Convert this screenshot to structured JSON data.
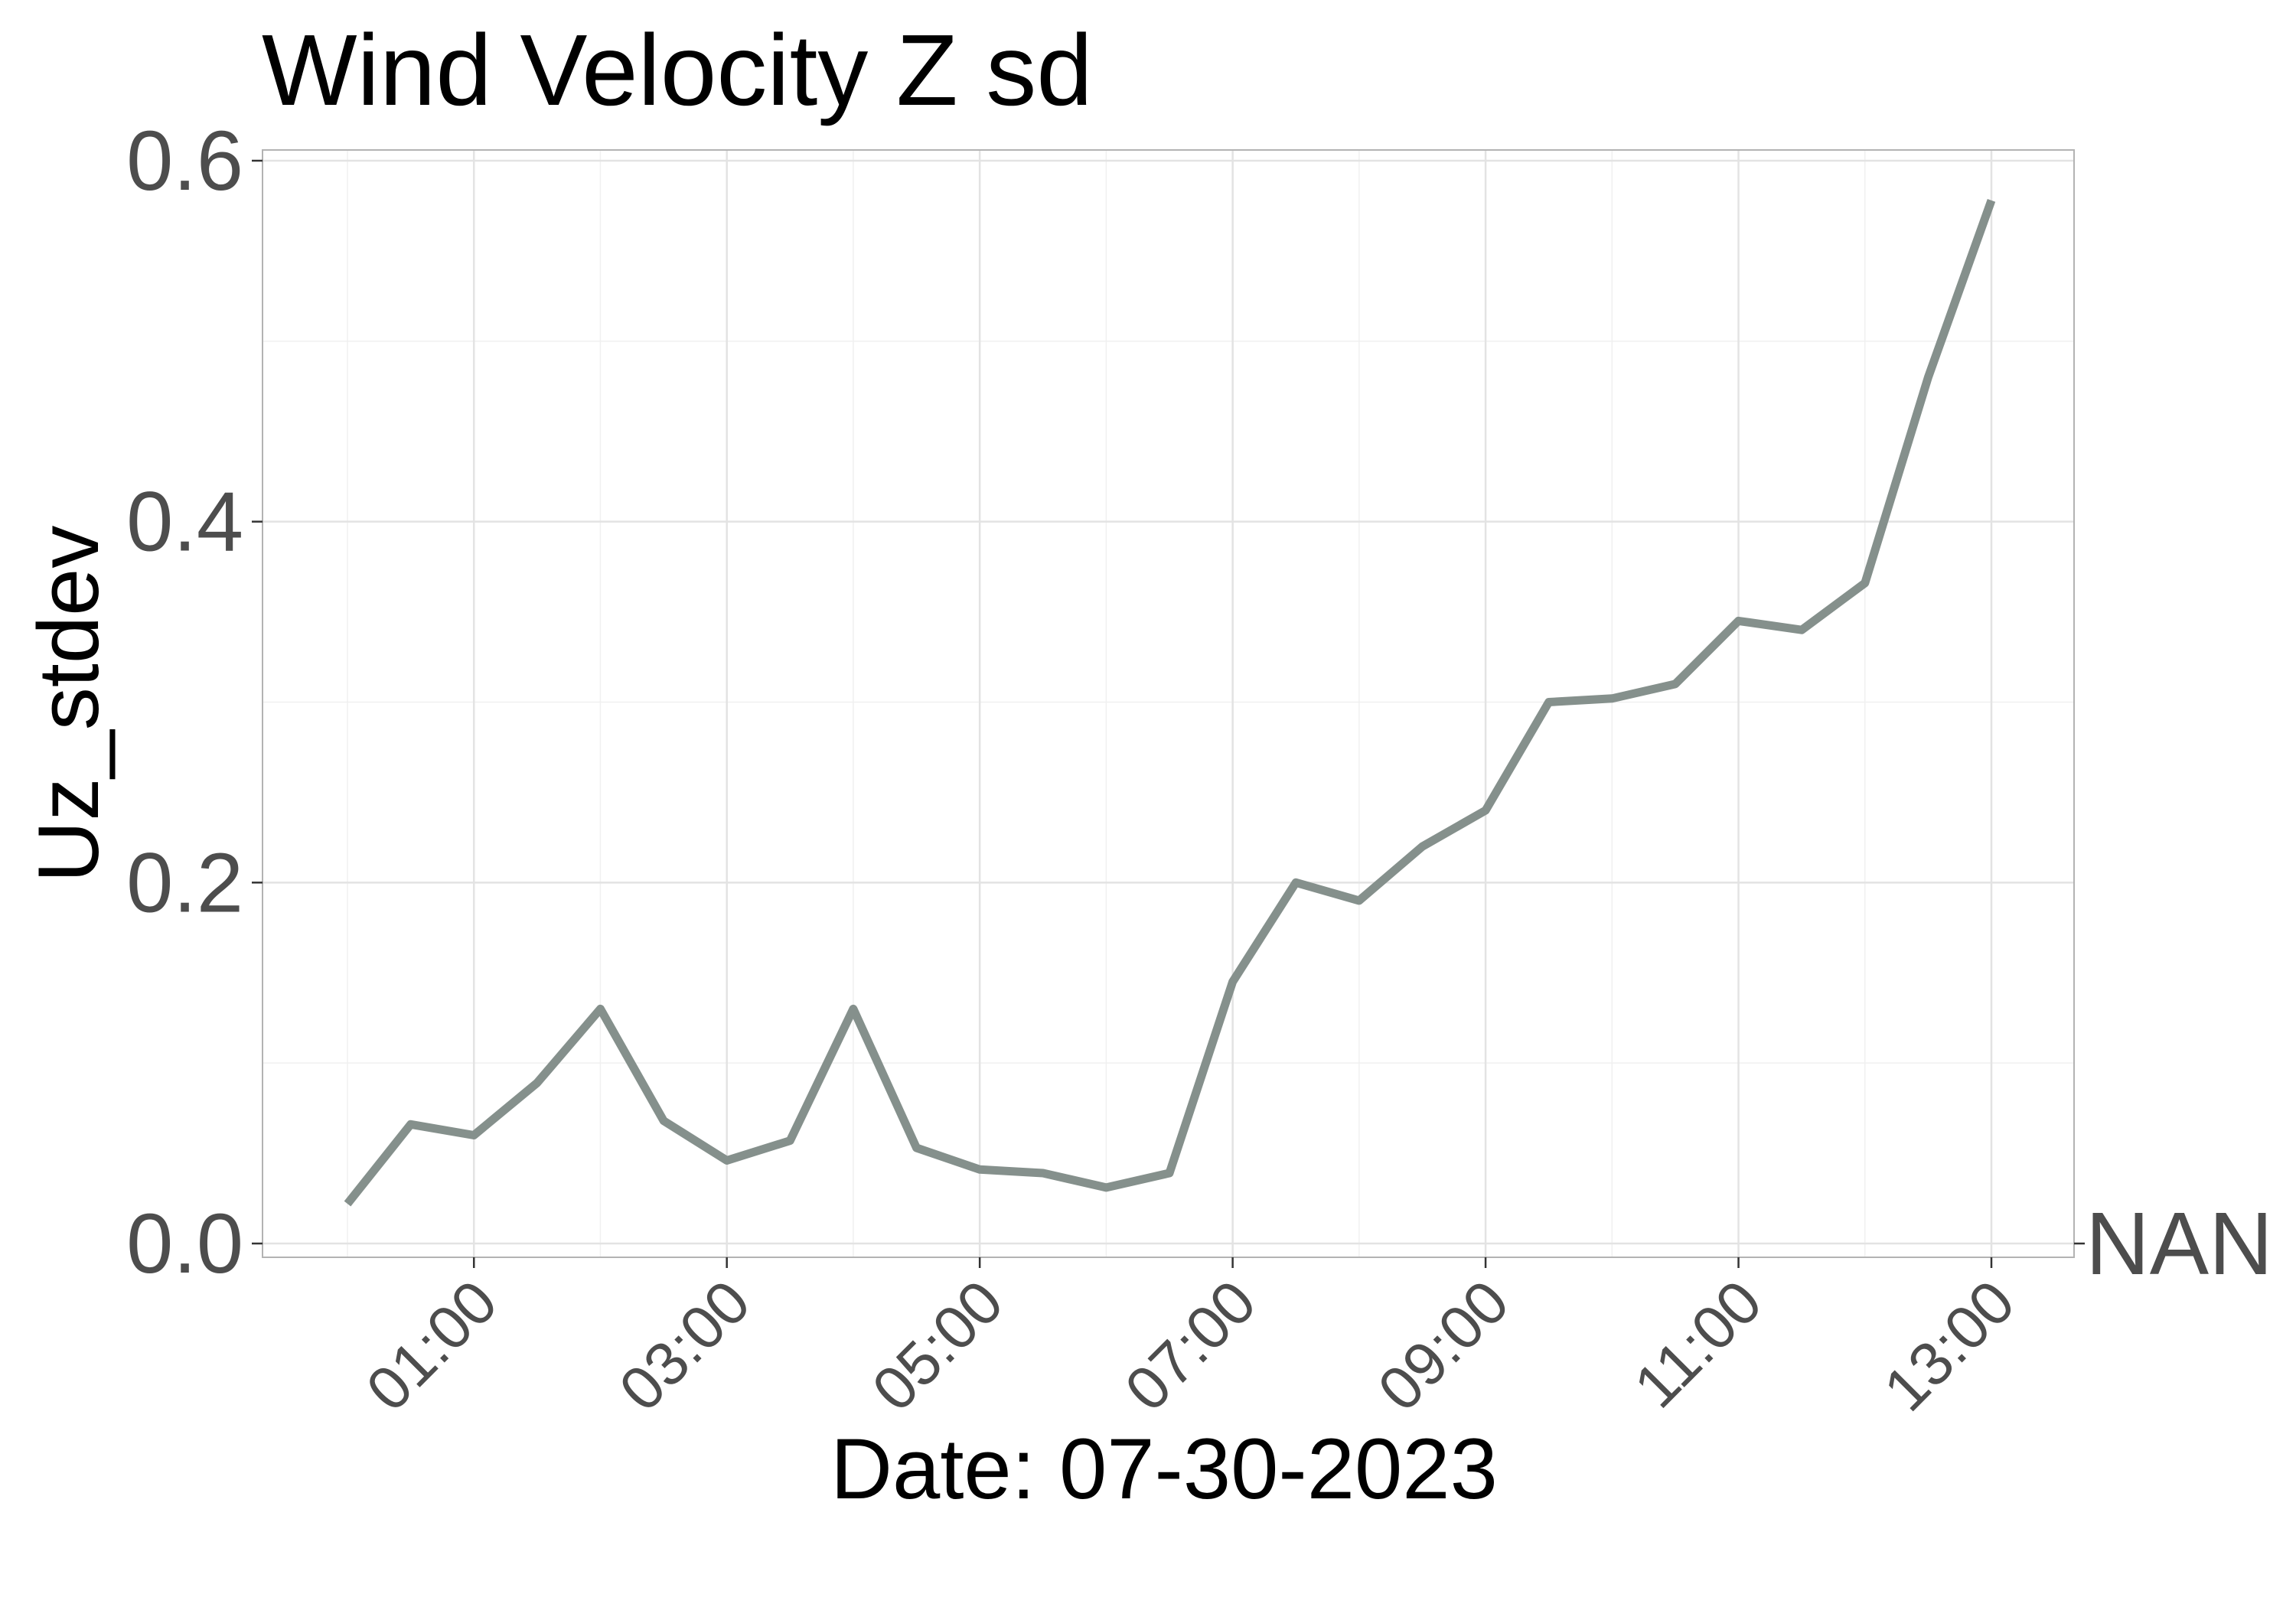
{
  "chart_data": {
    "type": "line",
    "title": "Wind Velocity Z sd",
    "xlabel": "Date: 07-30-2023",
    "ylabel": "Uz_stdev",
    "x_tick_labels": [
      "01:00",
      "03:00",
      "05:00",
      "07:00",
      "09:00",
      "11:00",
      "13:00"
    ],
    "y_tick_labels": [
      "0.0",
      "0.2",
      "0.4",
      "0.6"
    ],
    "ylim": [
      0,
      0.6
    ],
    "xlim": [
      "00:00",
      "13:30"
    ],
    "grid": true,
    "side_label": "NAN",
    "line_color": "#85908c",
    "series": [
      {
        "x": [
          "00:00",
          "00:30",
          "01:00",
          "01:30",
          "02:00",
          "02:30",
          "03:00",
          "03:30",
          "04:00",
          "04:30",
          "05:00",
          "05:30",
          "06:00",
          "06:30",
          "07:00",
          "07:30",
          "08:00",
          "08:30",
          "09:00",
          "09:30",
          "10:00",
          "10:30",
          "11:00",
          "11:30",
          "12:00",
          "12:30",
          "13:00"
        ],
        "values": [
          0.022,
          0.066,
          0.06,
          0.089,
          0.13,
          0.068,
          0.046,
          0.057,
          0.13,
          0.053,
          0.041,
          0.039,
          0.031,
          0.039,
          0.145,
          0.2,
          0.19,
          0.22,
          0.24,
          0.3,
          0.302,
          0.31,
          0.345,
          0.34,
          0.366,
          0.48,
          0.578
        ]
      }
    ]
  }
}
